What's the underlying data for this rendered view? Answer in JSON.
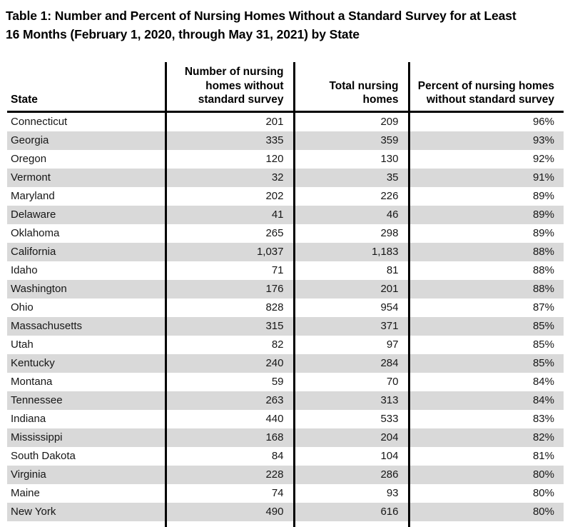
{
  "document": {
    "title_line1": "Table 1: Number and Percent of Nursing Homes Without a Standard Survey for at Least",
    "title_line2": "16 Months (February 1, 2020, through May 31, 2021) by State"
  },
  "table": {
    "columns": [
      "State",
      "Number of nursing homes without standard survey",
      "Total nursing homes",
      "Percent of nursing homes without standard survey"
    ],
    "rows": [
      [
        "Connecticut",
        "201",
        "209",
        "96%"
      ],
      [
        "Georgia",
        "335",
        "359",
        "93%"
      ],
      [
        "Oregon",
        "120",
        "130",
        "92%"
      ],
      [
        "Vermont",
        "32",
        "35",
        "91%"
      ],
      [
        "Maryland",
        "202",
        "226",
        "89%"
      ],
      [
        "Delaware",
        "41",
        "46",
        "89%"
      ],
      [
        "Oklahoma",
        "265",
        "298",
        "89%"
      ],
      [
        "California",
        "1,037",
        "1,183",
        "88%"
      ],
      [
        "Idaho",
        "71",
        "81",
        "88%"
      ],
      [
        "Washington",
        "176",
        "201",
        "88%"
      ],
      [
        "Ohio",
        "828",
        "954",
        "87%"
      ],
      [
        "Massachusetts",
        "315",
        "371",
        "85%"
      ],
      [
        "Utah",
        "82",
        "97",
        "85%"
      ],
      [
        "Kentucky",
        "240",
        "284",
        "85%"
      ],
      [
        "Montana",
        "59",
        "70",
        "84%"
      ],
      [
        "Tennessee",
        "263",
        "313",
        "84%"
      ],
      [
        "Indiana",
        "440",
        "533",
        "83%"
      ],
      [
        "Mississippi",
        "168",
        "204",
        "82%"
      ],
      [
        "South Dakota",
        "84",
        "104",
        "81%"
      ],
      [
        "Virginia",
        "228",
        "286",
        "80%"
      ],
      [
        "Maine",
        "74",
        "93",
        "80%"
      ],
      [
        "New York",
        "490",
        "616",
        "80%"
      ]
    ],
    "colors": {
      "stripe": "#d9d9d9",
      "border": "#000000",
      "text": "#161616"
    }
  }
}
